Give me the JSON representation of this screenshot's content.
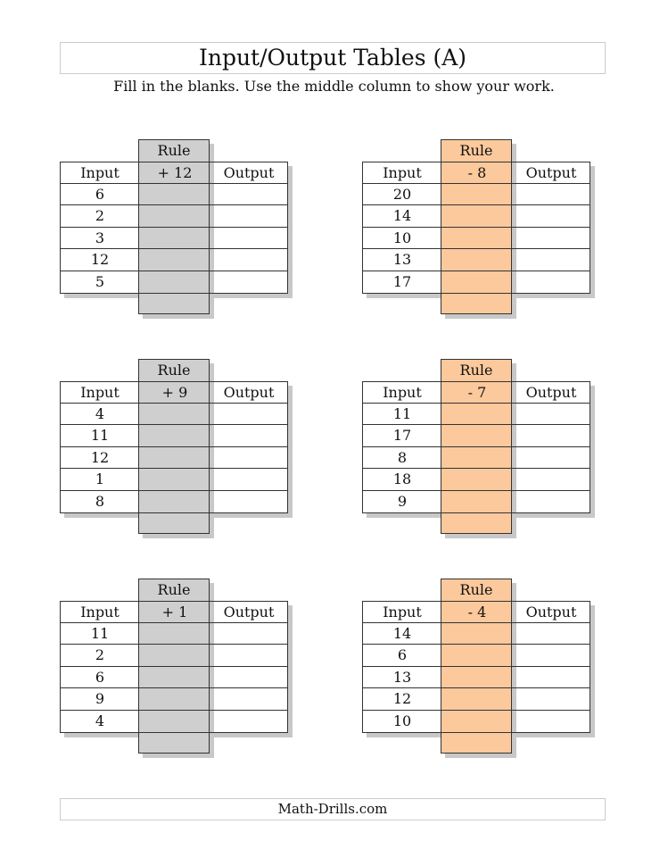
{
  "title": "Input/Output Tables (A)",
  "instructions": "Fill in the blanks. Use the middle column to show your work.",
  "footer": "Math-Drills.com",
  "headers": {
    "rule": "Rule",
    "input": "Input",
    "output": "Output"
  },
  "colors": {
    "gray_rule": "#cfcfcf",
    "orange_rule": "#fcc99c"
  },
  "tables": [
    {
      "rule": "+ 12",
      "color": "#cfcfcf",
      "inputs": [
        "6",
        "2",
        "3",
        "12",
        "5"
      ]
    },
    {
      "rule": "- 8",
      "color": "#fcc99c",
      "inputs": [
        "20",
        "14",
        "10",
        "13",
        "17"
      ]
    },
    {
      "rule": "+ 9",
      "color": "#cfcfcf",
      "inputs": [
        "4",
        "11",
        "12",
        "1",
        "8"
      ]
    },
    {
      "rule": "- 7",
      "color": "#fcc99c",
      "inputs": [
        "11",
        "17",
        "8",
        "18",
        "9"
      ]
    },
    {
      "rule": "+ 1",
      "color": "#cfcfcf",
      "inputs": [
        "11",
        "2",
        "6",
        "9",
        "4"
      ]
    },
    {
      "rule": "- 4",
      "color": "#fcc99c",
      "inputs": [
        "14",
        "6",
        "13",
        "12",
        "10"
      ]
    }
  ]
}
